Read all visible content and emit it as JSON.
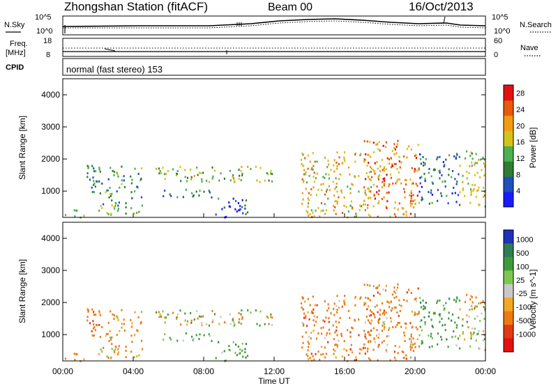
{
  "header": {
    "station": "Zhongshan Station (fitACF)",
    "beam": "Beam 00",
    "date": "16/Oct/2013"
  },
  "noise_panel": {
    "left_label": "N.Sky",
    "right_label": "N.Search",
    "left_ticks": [
      "10^5",
      "10^0"
    ],
    "right_ticks": [
      "10^5",
      "10^0"
    ]
  },
  "freq_panel": {
    "left_label_line1": "Freq.",
    "left_label_line2": "[MHz]",
    "left_ticks": [
      "18",
      "8"
    ],
    "right_label": "Nave",
    "right_ticks": [
      "60",
      "0"
    ]
  },
  "cpid": {
    "label": "CPID",
    "text": "normal (fast stereo) 153"
  },
  "colors": {
    "power": [
      "#1a1aff",
      "#1f4fbf",
      "#2e7d32",
      "#4caf50",
      "#d4c21a",
      "#f39c12",
      "#e8590c",
      "#e31010"
    ],
    "velocity": [
      "#2030b8",
      "#2e7d52",
      "#3f9b3a",
      "#7cc84f",
      "#c8c8c8",
      "#f5a623",
      "#ee7a12",
      "#e23a12",
      "#e41010"
    ]
  },
  "chart_data": [
    {
      "type": "heatmap",
      "title": "",
      "xlabel": "Time UT",
      "ylabel": "Slant Range [km]",
      "x_ticks": [
        "00:00",
        "04:00",
        "08:00",
        "12:00",
        "16:00",
        "20:00",
        "00:00"
      ],
      "y_ticks": [
        "1000",
        "2000",
        "3000",
        "4000"
      ],
      "xlim_hours": [
        0,
        24
      ],
      "ylim_km": [
        180,
        4500
      ],
      "colorbar": {
        "label": "Power [dB]",
        "ticks": [
          "4",
          "8",
          "12",
          "16",
          "20",
          "24",
          "28"
        ],
        "range": [
          0,
          30
        ]
      },
      "regions": [
        {
          "t0": 0.0,
          "t1": 1.2,
          "r0": 200,
          "r1": 500,
          "level": "mid-high",
          "power_dB": 14
        },
        {
          "t0": 1.3,
          "t1": 2.2,
          "r0": 900,
          "r1": 1900,
          "level": "mid",
          "power_dB": 10
        },
        {
          "t0": 2.0,
          "t1": 4.5,
          "r0": 300,
          "r1": 1800,
          "level": "mid",
          "power_dB": 11
        },
        {
          "t0": 5.2,
          "t1": 12.0,
          "r0": 1300,
          "r1": 1800,
          "level": "high",
          "power_dB": 14
        },
        {
          "t0": 5.5,
          "t1": 8.5,
          "r0": 800,
          "r1": 1100,
          "level": "low",
          "power_dB": 7
        },
        {
          "t0": 8.5,
          "t1": 10.5,
          "r0": 200,
          "r1": 800,
          "level": "low",
          "power_dB": 6
        },
        {
          "t0": 13.5,
          "t1": 17.5,
          "r0": 200,
          "r1": 2300,
          "level": "high",
          "power_dB": 18
        },
        {
          "t0": 17.0,
          "t1": 20.2,
          "r0": 200,
          "r1": 2600,
          "level": "very-high",
          "power_dB": 22
        },
        {
          "t0": 20.2,
          "t1": 22.5,
          "r0": 600,
          "r1": 2200,
          "level": "low",
          "power_dB": 8
        },
        {
          "t0": 22.5,
          "t1": 24.0,
          "r0": 500,
          "r1": 2300,
          "level": "high",
          "power_dB": 17
        }
      ]
    },
    {
      "type": "heatmap",
      "title": "",
      "xlabel": "Time UT",
      "ylabel": "Slant Range [km]",
      "x_ticks": [
        "00:00",
        "04:00",
        "08:00",
        "12:00",
        "16:00",
        "20:00",
        "00:00"
      ],
      "y_ticks": [
        "1000",
        "2000",
        "3000",
        "4000"
      ],
      "xlim_hours": [
        0,
        24
      ],
      "ylim_km": [
        180,
        4500
      ],
      "colorbar": {
        "label": "Velocity [m s^-1]",
        "ticks": [
          "1000",
          "500",
          "100",
          "25",
          "-25",
          "-100",
          "-500",
          "-1000"
        ]
      },
      "regions": [
        {
          "t0": 0.0,
          "t1": 1.2,
          "r0": 200,
          "r1": 500,
          "velocity_m_s": -300
        },
        {
          "t0": 1.3,
          "t1": 2.2,
          "r0": 900,
          "r1": 1900,
          "velocity_m_s": -400
        },
        {
          "t0": 2.0,
          "t1": 4.5,
          "r0": 300,
          "r1": 1800,
          "velocity_m_s": -200
        },
        {
          "t0": 5.2,
          "t1": 12.0,
          "r0": 1300,
          "r1": 1800,
          "velocity_m_s": 0
        },
        {
          "t0": 5.5,
          "t1": 8.5,
          "r0": 800,
          "r1": 1100,
          "velocity_m_s": 150
        },
        {
          "t0": 8.5,
          "t1": 10.5,
          "r0": 200,
          "r1": 800,
          "velocity_m_s": 300
        },
        {
          "t0": 13.5,
          "t1": 17.5,
          "r0": 200,
          "r1": 2300,
          "velocity_m_s": -300
        },
        {
          "t0": 17.0,
          "t1": 20.2,
          "r0": 200,
          "r1": 2600,
          "velocity_m_s": -250
        },
        {
          "t0": 20.2,
          "t1": 22.5,
          "r0": 600,
          "r1": 2200,
          "velocity_m_s": 300
        },
        {
          "t0": 22.5,
          "t1": 24.0,
          "r0": 500,
          "r1": 2300,
          "velocity_m_s": 0
        }
      ]
    }
  ]
}
